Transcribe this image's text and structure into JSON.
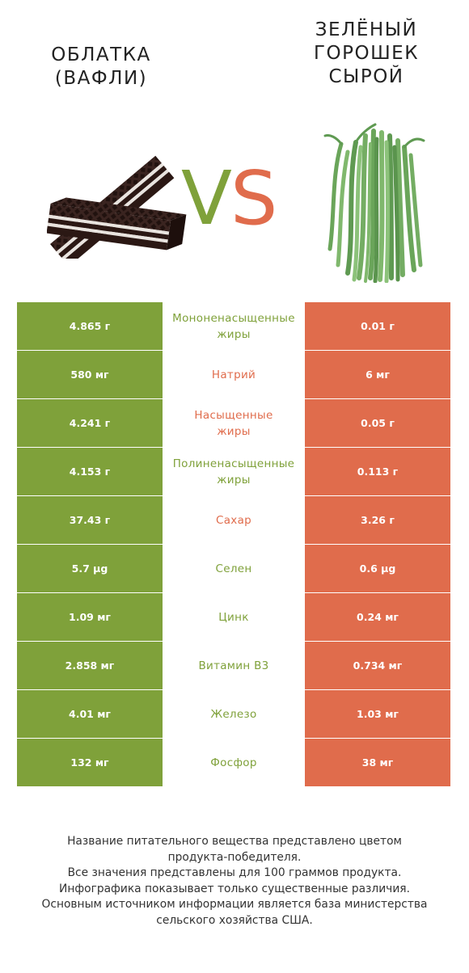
{
  "products": {
    "left": {
      "name": "Облатка\n(Вафли)",
      "image": "wafer-image",
      "color": "#7fa13a"
    },
    "right": {
      "name": "Зелёный\nгорошек\nсырой",
      "image": "green-beans-image",
      "color": "#e06c4c"
    }
  },
  "vs": {
    "v": "V",
    "s": "S"
  },
  "rows": [
    {
      "left": "4.865 г",
      "nutrient": "Мононенасыщенные\nжиры",
      "right": "0.01 г",
      "winner": "left"
    },
    {
      "left": "580 мг",
      "nutrient": "Натрий",
      "right": "6 мг",
      "winner": "right"
    },
    {
      "left": "4.241 г",
      "nutrient": "Насыщенные\nжиры",
      "right": "0.05 г",
      "winner": "right"
    },
    {
      "left": "4.153 г",
      "nutrient": "Полиненасыщенные\nжиры",
      "right": "0.113 г",
      "winner": "left"
    },
    {
      "left": "37.43 г",
      "nutrient": "Сахар",
      "right": "3.26 г",
      "winner": "right"
    },
    {
      "left": "5.7 µg",
      "nutrient": "Селен",
      "right": "0.6 µg",
      "winner": "left"
    },
    {
      "left": "1.09 мг",
      "nutrient": "Цинк",
      "right": "0.24 мг",
      "winner": "left"
    },
    {
      "left": "2.858 мг",
      "nutrient": "Витамин B3",
      "right": "0.734 мг",
      "winner": "left"
    },
    {
      "left": "4.01 мг",
      "nutrient": "Железо",
      "right": "1.03 мг",
      "winner": "left"
    },
    {
      "left": "132 мг",
      "nutrient": "Фосфор",
      "right": "38 мг",
      "winner": "left"
    }
  ],
  "footer": [
    "Название питательного вещества представлено цветом",
    "продукта-победителя.",
    "Все значения представлены для 100 граммов продукта.",
    "Инфографика показывает только существенные различия.",
    "Основным источником информации является база министерства",
    "сельского хозяйства США."
  ]
}
